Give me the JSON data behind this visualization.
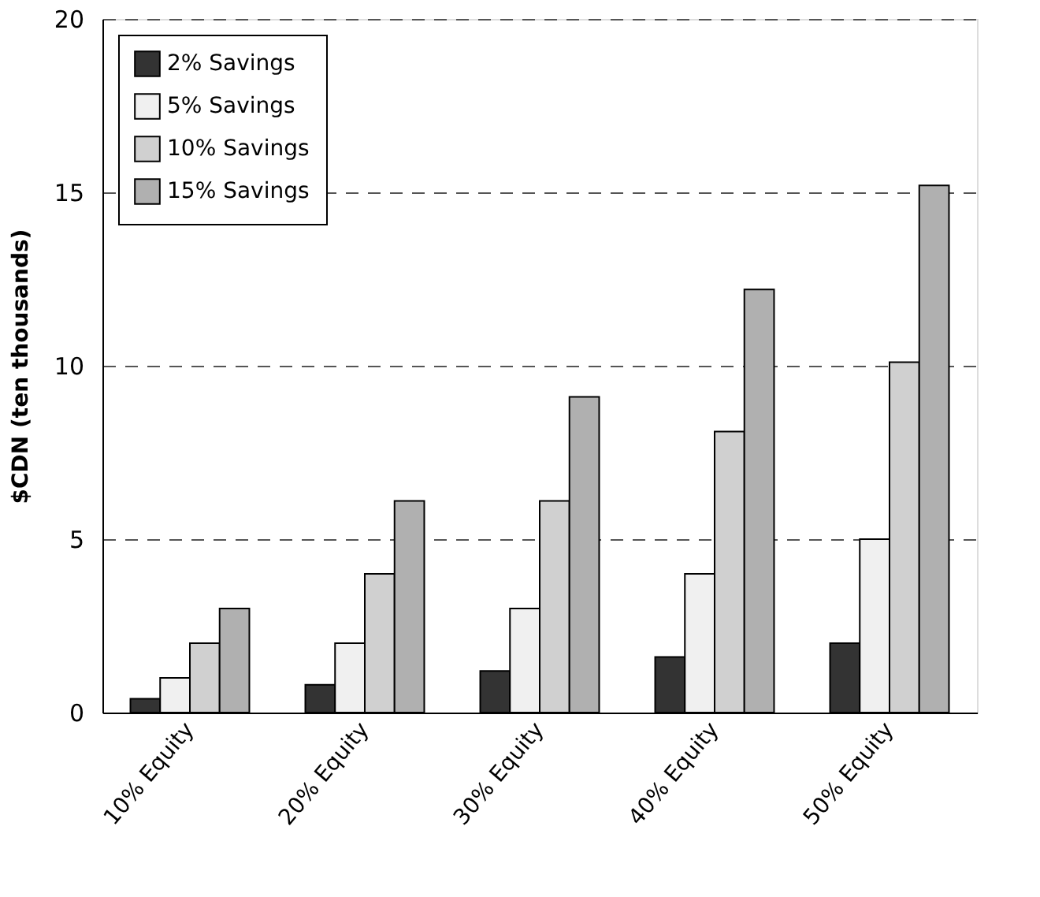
{
  "chart_data": {
    "type": "bar",
    "ylabel": "$CDN (ten thousands)",
    "categories": [
      "10% Equity",
      "20% Equity",
      "30% Equity",
      "40% Equity",
      "50% Equity"
    ],
    "series": [
      {
        "name": "2% Savings",
        "color": "#333333",
        "values": [
          0.4,
          0.8,
          1.2,
          1.6,
          2.0
        ]
      },
      {
        "name": "5% Savings",
        "color": "#f0f0f0",
        "values": [
          1.0,
          2.0,
          3.0,
          4.0,
          5.0
        ]
      },
      {
        "name": "10% Savings",
        "color": "#d0d0d0",
        "values": [
          2.0,
          4.0,
          6.1,
          8.1,
          10.1
        ]
      },
      {
        "name": "15% Savings",
        "color": "#b0b0b0",
        "values": [
          3.0,
          6.1,
          9.1,
          12.2,
          15.2
        ]
      }
    ],
    "ylim": [
      0,
      20
    ],
    "yticks": [
      0,
      5,
      10,
      15,
      20
    ],
    "grid": "y",
    "legend": "top left"
  }
}
